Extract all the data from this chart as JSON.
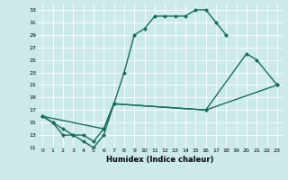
{
  "xlabel": "Humidex (Indice chaleur)",
  "xlim": [
    -0.5,
    23.5
  ],
  "ylim": [
    11,
    34
  ],
  "yticks": [
    11,
    13,
    15,
    17,
    19,
    21,
    23,
    25,
    27,
    29,
    31,
    33
  ],
  "xticks": [
    0,
    1,
    2,
    3,
    4,
    5,
    6,
    7,
    8,
    9,
    10,
    11,
    12,
    13,
    14,
    15,
    16,
    17,
    18,
    19,
    20,
    21,
    22,
    23
  ],
  "line_color": "#1a6b5e",
  "bg_color": "#cceaea",
  "grid_color": "#ffffff",
  "curve1_x": [
    0,
    1,
    2,
    3,
    4,
    5,
    6,
    7,
    8,
    9,
    10,
    11,
    12,
    13,
    14,
    15,
    16,
    17,
    18
  ],
  "curve1_y": [
    16,
    15,
    13,
    13,
    12,
    11,
    13,
    18,
    23,
    29,
    30,
    32,
    32,
    32,
    32,
    33,
    33,
    31,
    29
  ],
  "curve2_x": [
    0,
    1,
    2,
    3,
    4,
    5,
    6,
    7,
    16,
    20,
    21,
    23
  ],
  "curve2_y": [
    16,
    15,
    14,
    13,
    13,
    12,
    14,
    18,
    17,
    26,
    25,
    21
  ],
  "curve3_x": [
    0,
    6,
    7,
    16,
    23
  ],
  "curve3_y": [
    16,
    14,
    18,
    17,
    21
  ]
}
